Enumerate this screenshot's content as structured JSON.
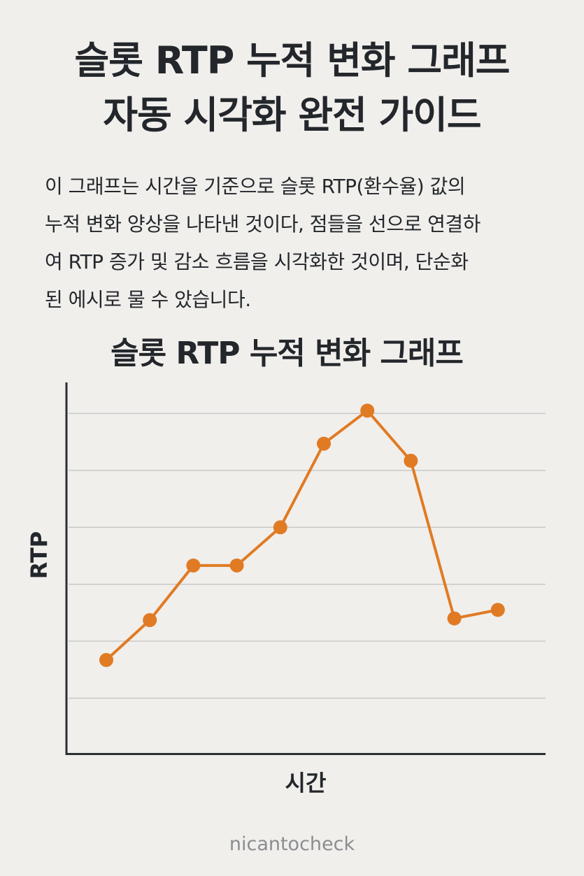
{
  "header": {
    "title_line1": "슬롯 RTP 누적 변화 그래프",
    "title_line2": "자동 시각화 완전 가이드"
  },
  "description": {
    "lines": [
      "이 그래프는 시간을 기준으로 슬롯 RTP(환수율) 값의",
      "누적 변화 양상을 나타낸 것이다, 점들을 선으로 연결하",
      "여 RTP 증가 및 감소 흐름을 시각화한 것이며, 단순화",
      "된 에시로 물 수 았습니다."
    ]
  },
  "chart_data": {
    "type": "line",
    "title": "슬롯 RTP 누적 변화 그래프",
    "xlabel": "시간",
    "ylabel": "RTP",
    "x": [
      1,
      2,
      3,
      4,
      5,
      6,
      7,
      8,
      9,
      10
    ],
    "series": [
      {
        "values": [
          0.67,
          1.37,
          2.33,
          2.33,
          3.0,
          4.47,
          5.05,
          4.17,
          1.4,
          1.55
        ]
      }
    ],
    "ylim": [
      -1,
      6
    ],
    "grid": true,
    "legend": "none",
    "color": "#e07b24"
  },
  "footer": {
    "watermark": "nicantocheck"
  }
}
